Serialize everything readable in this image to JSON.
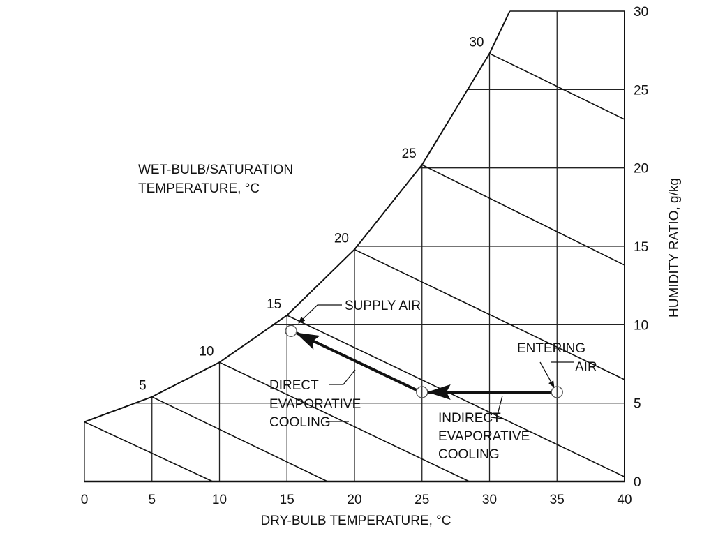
{
  "chart_data": {
    "type": "diagram",
    "xlabel": "DRY-BULB TEMPERATURE, °C",
    "ylabel": "HUMIDITY RATIO, g/kg",
    "x_ticks": [
      "0",
      "5",
      "10",
      "15",
      "20",
      "25",
      "30",
      "35",
      "40"
    ],
    "y_ticks": [
      "0",
      "5",
      "10",
      "15",
      "20",
      "25",
      "30"
    ],
    "xlim": [
      0,
      40
    ],
    "ylim": [
      0,
      30
    ],
    "saturation_label": [
      "WET-BULB/SATURATION",
      "TEMPERATURE, °C"
    ],
    "saturation_curve": [
      [
        0,
        3.8
      ],
      [
        5,
        5.4
      ],
      [
        10,
        7.6
      ],
      [
        15,
        10.6
      ],
      [
        20,
        14.8
      ],
      [
        25,
        20.2
      ],
      [
        30,
        27.3
      ],
      [
        31.5,
        30
      ]
    ],
    "wet_bulb_labels": [
      "5",
      "10",
      "15",
      "20",
      "25",
      "30"
    ],
    "wet_bulb_lines": [
      {
        "from": [
          0,
          3.8
        ],
        "to": [
          9.5,
          0
        ]
      },
      {
        "from": [
          5,
          5.4
        ],
        "to": [
          18,
          0
        ]
      },
      {
        "from": [
          10,
          7.6
        ],
        "to": [
          28.5,
          0
        ]
      },
      {
        "from": [
          15,
          10.6
        ],
        "to": [
          40,
          0.3
        ]
      },
      {
        "from": [
          20,
          14.8
        ],
        "to": [
          40,
          6.5
        ]
      },
      {
        "from": [
          25,
          20.2
        ],
        "to": [
          40,
          13.8
        ]
      },
      {
        "from": [
          30,
          27.3
        ],
        "to": [
          40,
          23.1
        ]
      }
    ],
    "process_points": {
      "entering_air": [
        35,
        5.7
      ],
      "after_indirect": [
        25,
        5.7
      ],
      "supply_air": [
        15.3,
        9.6
      ]
    },
    "annotations": {
      "supply_air": "SUPPLY AIR",
      "entering_air": [
        "ENTERING",
        "AIR"
      ],
      "direct": [
        "DIRECT",
        "EVAPORATIVE",
        "COOLING"
      ],
      "indirect": [
        "INDIRECT",
        "EVAPORATIVE",
        "COOLING"
      ]
    }
  }
}
